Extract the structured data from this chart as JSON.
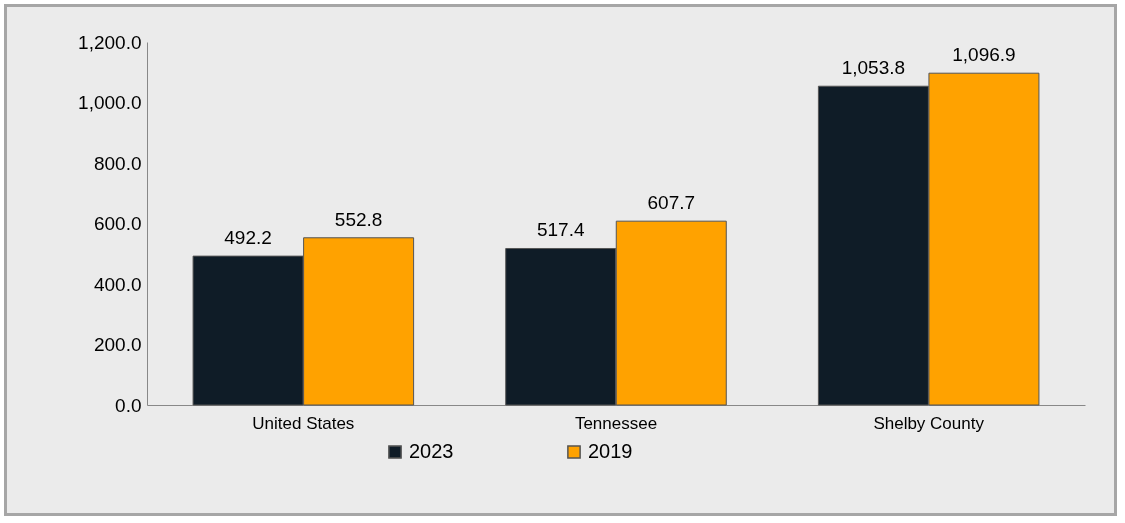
{
  "chart_data": {
    "type": "bar",
    "categories": [
      "United States",
      "Tennessee",
      "Shelby County"
    ],
    "series": [
      {
        "name": "2023",
        "color": "#0f1c27",
        "values": [
          492.2,
          517.4,
          1053.8
        ],
        "value_labels": [
          "492.2",
          "517.4",
          "1,053.8"
        ]
      },
      {
        "name": "2019",
        "color": "#ffa200",
        "values": [
          552.8,
          607.7,
          1096.9
        ],
        "value_labels": [
          "552.8",
          "607.7",
          "1,096.9"
        ]
      }
    ],
    "ylim": [
      0,
      1200
    ],
    "yticks": [
      {
        "value": 0,
        "label": "0.0"
      },
      {
        "value": 200,
        "label": "200.0"
      },
      {
        "value": 400,
        "label": "400.0"
      },
      {
        "value": 600,
        "label": "600.0"
      },
      {
        "value": 800,
        "label": "800.0"
      },
      {
        "value": 1000,
        "label": "1,000.0"
      },
      {
        "value": 1200,
        "label": "1,200.0"
      }
    ],
    "grid": false,
    "legend": "bottom"
  }
}
